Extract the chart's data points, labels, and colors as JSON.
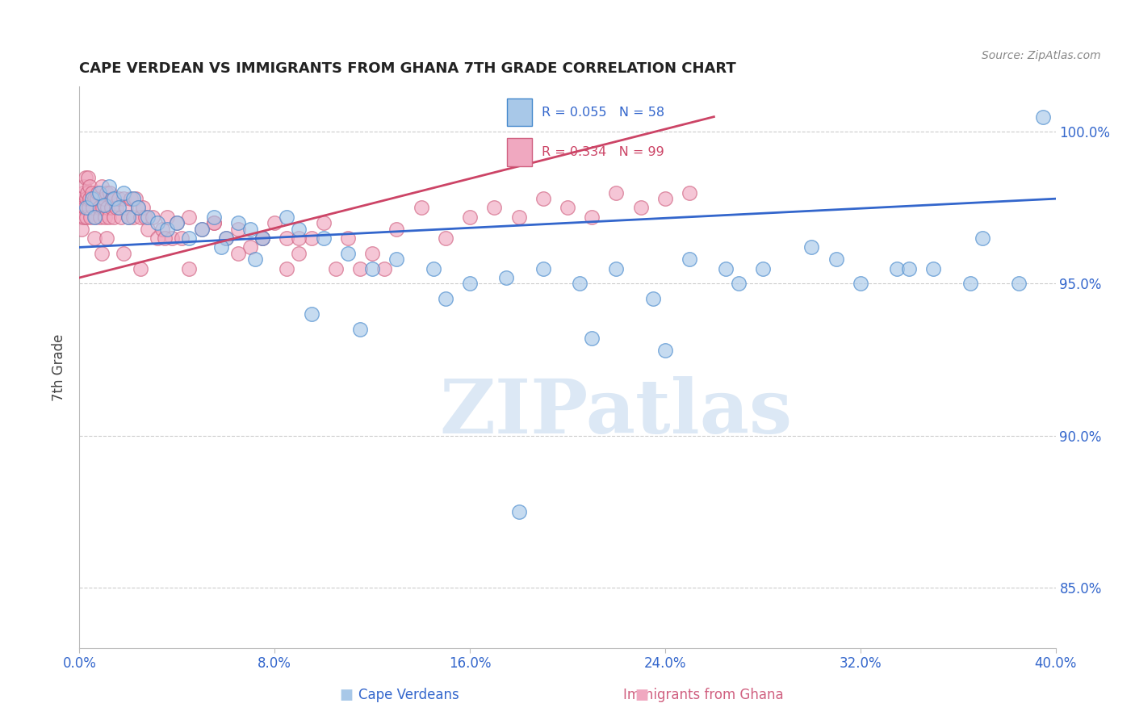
{
  "title": "CAPE VERDEAN VS IMMIGRANTS FROM GHANA 7TH GRADE CORRELATION CHART",
  "source": "Source: ZipAtlas.com",
  "ylabel": "7th Grade",
  "xlim": [
    0.0,
    40.0
  ],
  "ylim": [
    83.0,
    101.5
  ],
  "yticks": [
    85.0,
    90.0,
    95.0,
    100.0
  ],
  "xticks": [
    0.0,
    8.0,
    16.0,
    24.0,
    32.0,
    40.0
  ],
  "legend_blue_label": "R = 0.055   N = 58",
  "legend_pink_label": "R = 0.334   N = 99",
  "blue_fill": "#a8c8e8",
  "blue_edge": "#4488cc",
  "pink_fill": "#f0a8c0",
  "pink_edge": "#d06080",
  "blue_line_color": "#3366cc",
  "pink_line_color": "#cc4466",
  "watermark": "ZIPatlas",
  "watermark_color": "#dce8f5",
  "legend_label_blue": "Cape Verdeans",
  "legend_label_pink": "Immigrants from Ghana",
  "background_color": "#ffffff",
  "grid_color": "#cccccc",
  "blue_x": [
    0.3,
    0.5,
    0.6,
    0.8,
    1.0,
    1.2,
    1.4,
    1.6,
    1.8,
    2.0,
    2.2,
    2.4,
    2.8,
    3.2,
    3.6,
    4.0,
    4.5,
    5.0,
    5.5,
    6.0,
    6.5,
    7.0,
    7.5,
    8.5,
    9.0,
    10.0,
    11.0,
    12.0,
    13.0,
    14.5,
    16.0,
    17.5,
    19.0,
    20.5,
    22.0,
    23.5,
    25.0,
    26.5,
    28.0,
    30.0,
    32.0,
    33.5,
    35.0,
    37.0,
    39.5,
    15.0,
    18.0,
    21.0,
    24.0,
    27.0,
    31.0,
    34.0,
    36.5,
    38.5,
    5.8,
    7.2,
    9.5,
    11.5
  ],
  "blue_y": [
    97.5,
    97.8,
    97.2,
    98.0,
    97.6,
    98.2,
    97.8,
    97.5,
    98.0,
    97.2,
    97.8,
    97.5,
    97.2,
    97.0,
    96.8,
    97.0,
    96.5,
    96.8,
    97.2,
    96.5,
    97.0,
    96.8,
    96.5,
    97.2,
    96.8,
    96.5,
    96.0,
    95.5,
    95.8,
    95.5,
    95.0,
    95.2,
    95.5,
    95.0,
    95.5,
    94.5,
    95.8,
    95.5,
    95.5,
    96.2,
    95.0,
    95.5,
    95.5,
    96.5,
    100.5,
    94.5,
    87.5,
    93.2,
    92.8,
    95.0,
    95.8,
    95.5,
    95.0,
    95.0,
    96.2,
    95.8,
    94.0,
    93.5
  ],
  "pink_x": [
    0.05,
    0.08,
    0.1,
    0.12,
    0.15,
    0.18,
    0.2,
    0.22,
    0.25,
    0.28,
    0.3,
    0.32,
    0.35,
    0.38,
    0.4,
    0.42,
    0.45,
    0.5,
    0.55,
    0.6,
    0.65,
    0.7,
    0.75,
    0.8,
    0.85,
    0.9,
    0.95,
    1.0,
    1.05,
    1.1,
    1.15,
    1.2,
    1.25,
    1.3,
    1.35,
    1.4,
    1.5,
    1.6,
    1.7,
    1.8,
    1.9,
    2.0,
    2.1,
    2.2,
    2.3,
    2.4,
    2.5,
    2.6,
    2.7,
    2.8,
    3.0,
    3.2,
    3.4,
    3.6,
    3.8,
    4.0,
    4.2,
    4.5,
    5.0,
    5.5,
    6.0,
    6.5,
    7.0,
    7.5,
    8.0,
    8.5,
    9.0,
    9.5,
    10.0,
    11.0,
    12.0,
    13.0,
    14.0,
    15.0,
    16.0,
    17.0,
    18.0,
    19.0,
    20.0,
    21.0,
    22.0,
    23.0,
    24.0,
    25.0,
    0.6,
    0.9,
    1.1,
    1.8,
    2.5,
    3.5,
    4.5,
    5.5,
    6.5,
    7.5,
    8.5,
    9.0,
    10.5,
    11.5,
    12.5
  ],
  "pink_y": [
    97.2,
    97.8,
    96.8,
    97.5,
    98.0,
    97.2,
    98.2,
    97.5,
    98.5,
    97.8,
    97.2,
    98.0,
    98.5,
    97.5,
    98.2,
    97.8,
    97.2,
    98.0,
    97.5,
    97.8,
    97.2,
    97.8,
    98.0,
    97.5,
    97.2,
    98.2,
    97.5,
    97.8,
    97.2,
    98.0,
    97.5,
    97.2,
    98.0,
    97.5,
    97.8,
    97.2,
    97.5,
    97.8,
    97.2,
    97.8,
    97.5,
    97.2,
    97.8,
    97.2,
    97.8,
    97.5,
    97.2,
    97.5,
    97.2,
    96.8,
    97.2,
    96.5,
    96.8,
    97.2,
    96.5,
    97.0,
    96.5,
    97.2,
    96.8,
    97.0,
    96.5,
    96.8,
    96.2,
    96.5,
    97.0,
    96.5,
    96.0,
    96.5,
    97.0,
    96.5,
    96.0,
    96.8,
    97.5,
    96.5,
    97.2,
    97.5,
    97.2,
    97.8,
    97.5,
    97.2,
    98.0,
    97.5,
    97.8,
    98.0,
    96.5,
    96.0,
    96.5,
    96.0,
    95.5,
    96.5,
    95.5,
    97.0,
    96.0,
    96.5,
    95.5,
    96.5,
    95.5,
    95.5,
    95.5
  ]
}
